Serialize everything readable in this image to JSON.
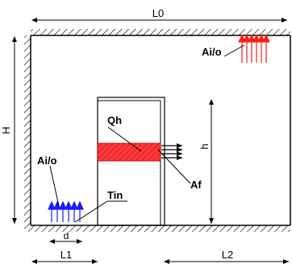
{
  "labels": {
    "L0": "L0",
    "H": "H",
    "h": "h",
    "L1": "L1",
    "L2": "L2",
    "d": "d",
    "Qh": "Qh",
    "Af": "Af",
    "Tin": "Tin",
    "Ai_o_top": "Ai/o",
    "Ai_o_bottom": "Ai/o"
  },
  "colors": {
    "outline": "#000000",
    "hatch": "#000000",
    "heat_band": "#ff1a1a",
    "inflow_arrow": "#1a1aff",
    "outflow_arrow": "#ff1a1a"
  },
  "icons": {
    "wall_hatch": "hatched-wall",
    "flow_arrows": "arrow-up-array",
    "heat_arrows": "arrow-right-array"
  }
}
